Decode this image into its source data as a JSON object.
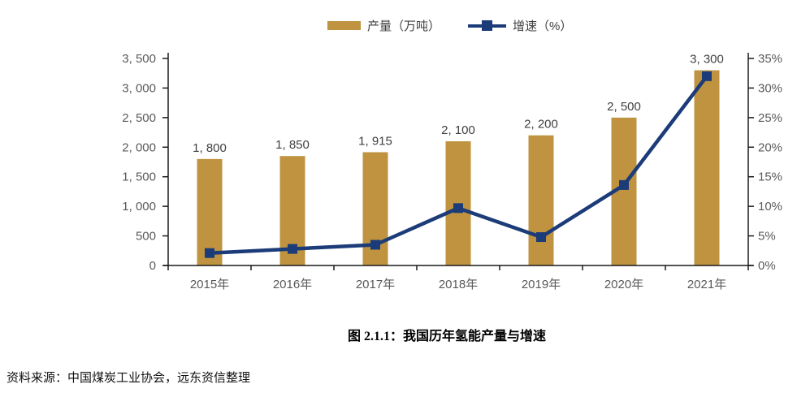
{
  "legend": {
    "items": [
      {
        "label": "产量（万吨）",
        "swatch": "bar",
        "color": "#BF9340"
      },
      {
        "label": "增速（%）",
        "swatch": "line-square",
        "color": "#1B3C78"
      }
    ]
  },
  "chart_data": {
    "type": "bar+line",
    "categories": [
      "2015年",
      "2016年",
      "2017年",
      "2018年",
      "2019年",
      "2020年",
      "2021年"
    ],
    "series": [
      {
        "name": "产量（万吨）",
        "type": "bar",
        "axis": "left",
        "values": [
          1800,
          1850,
          1915,
          2100,
          2200,
          2500,
          3300
        ],
        "value_labels": [
          "1, 800",
          "1, 850",
          "1, 915",
          "2, 100",
          "2, 200",
          "2, 500",
          "3, 300"
        ],
        "color": "#BF9340"
      },
      {
        "name": "增速（%）",
        "type": "line",
        "axis": "right",
        "values": [
          2.1,
          2.8,
          3.5,
          9.7,
          4.8,
          13.6,
          32.0
        ],
        "color": "#1B3C78",
        "marker": "square"
      }
    ],
    "left_axis": {
      "min": 0,
      "max": 3500,
      "step": 500,
      "tick_labels": [
        "0",
        "500",
        "1, 000",
        "1, 500",
        "2, 000",
        "2, 500",
        "3, 000",
        "3, 500"
      ]
    },
    "right_axis": {
      "min": 0,
      "max": 35,
      "step": 5,
      "tick_labels": [
        "0%",
        "5%",
        "10%",
        "15%",
        "20%",
        "25%",
        "30%",
        "35%"
      ]
    },
    "grid": false,
    "legend_position": "top-center"
  },
  "caption": {
    "text": "图 2.1.1：我国历年氢能产量与增速"
  },
  "source": {
    "text": "资料来源：中国煤炭工业协会，远东资信整理"
  },
  "colors": {
    "bar": "#BF9340",
    "line": "#1B3C78",
    "axis": "#1a1a1a",
    "tick_text": "#595959",
    "label_text": "#3f3f3f"
  }
}
